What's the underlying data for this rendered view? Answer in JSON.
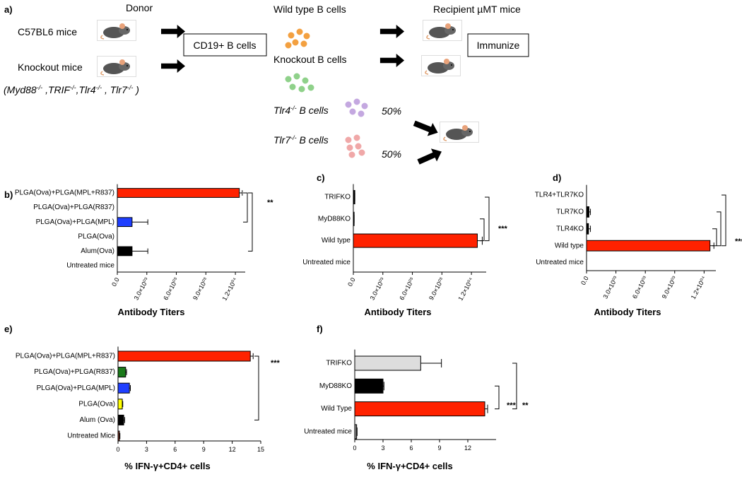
{
  "diagram": {
    "label": "a)",
    "donor_header": "Donor",
    "donor_wild": "C57BL6 mice",
    "donor_knockout": "Knockout mice",
    "knockout_genes": [
      "(Myd88",
      "-/-",
      " ,TRIF",
      "-/-",
      ",Tlr4",
      "-/-",
      " , Tlr7",
      "-/-",
      " )"
    ],
    "sorted": "CD19+ B cells",
    "wild_cells": "Wild type B cells",
    "knockout_cells": "Knockout B cells",
    "tlr4_cells": [
      "Tlr4",
      "-/-",
      " B cells"
    ],
    "tlr7_cells": [
      "Tlr7",
      "-/-",
      " B cells"
    ],
    "tlr4_share": "50%",
    "tlr7_share": "50%",
    "recipient_header": "Recipient µMT mice",
    "immunize": "Immunize"
  },
  "chart_data": [
    {
      "type": "barh",
      "panel": "b)",
      "categories": [
        "PLGA(Ova)+PLGA(MPL+R837)",
        "PLGA(Ova)+PLGA(R837)",
        "PLGA(Ova)+PLGA(MPL)",
        "PLGA(Ova)",
        "Alum(Ova)",
        "Untreated mice"
      ],
      "values": [
        12400,
        0,
        1500,
        0,
        1500,
        0
      ],
      "errors": [
        300,
        0,
        1600,
        0,
        1600,
        0
      ],
      "colors": [
        "#ff2200",
        "#ff2200",
        "#1f3fff",
        "#000000",
        "#000000",
        "#000000"
      ],
      "xlim": [
        0,
        13000
      ],
      "xticks": [
        {
          "value": 0,
          "label": "0.0"
        },
        {
          "value": 3000,
          "label": "3.0×10⁰³"
        },
        {
          "value": 6000,
          "label": "6.0×10⁰³"
        },
        {
          "value": 9000,
          "label": "9.0×10⁰³"
        },
        {
          "value": 12000,
          "label": "1.2×10⁰⁴"
        }
      ],
      "xlabel": "Antibody Titers",
      "annotations": [
        "**"
      ]
    },
    {
      "type": "barh",
      "panel": "c)",
      "categories": [
        "TRIFKO",
        "MyD88KO",
        "Wild type",
        "Untreated mice"
      ],
      "values": [
        150,
        80,
        12600,
        0
      ],
      "errors": [
        0,
        0,
        500,
        0
      ],
      "colors": [
        "#000000",
        "#000000",
        "#ff2200",
        "#000000"
      ],
      "xlim": [
        0,
        13500
      ],
      "xticks": [
        {
          "value": 0,
          "label": "0.0"
        },
        {
          "value": 3000,
          "label": "3.0×10⁰³"
        },
        {
          "value": 6000,
          "label": "6.0×10⁰³"
        },
        {
          "value": 9000,
          "label": "9.0×10⁰³"
        },
        {
          "value": 12000,
          "label": "1.2×10⁰⁴"
        }
      ],
      "xlabel": "Antibody Titers",
      "annotations": [
        "***"
      ]
    },
    {
      "type": "barh",
      "panel": "d)",
      "categories": [
        "TLR4+TLR7KO",
        "TLR7KO",
        "TLR4KO",
        "Wild type",
        "Untreated mice"
      ],
      "values": [
        0,
        250,
        200,
        12600,
        0
      ],
      "errors": [
        0,
        150,
        200,
        400,
        0
      ],
      "colors": [
        "#000000",
        "#000000",
        "#000000",
        "#ff2200",
        "#000000"
      ],
      "xlim": [
        0,
        13200
      ],
      "xticks": [
        {
          "value": 0,
          "label": "0.0"
        },
        {
          "value": 3000,
          "label": "3.0×10⁰³"
        },
        {
          "value": 6000,
          "label": "6.0×10⁰³"
        },
        {
          "value": 9000,
          "label": "9.0×10⁰³"
        },
        {
          "value": 12000,
          "label": "1.2×10⁰⁴"
        }
      ],
      "xlabel": "Antibody Titers",
      "annotations": [
        "***"
      ]
    },
    {
      "type": "barh",
      "panel": "e)",
      "categories": [
        "PLGA(Ova)+PLGA(MPL+R837)",
        "PLGA(Ova)+PLGA(R837)",
        "PLGA(Ova)+PLGA(MPL)",
        "PLGA(Ova)",
        "Alum (Ova)",
        "Untreated Mice"
      ],
      "values": [
        13.9,
        0.8,
        1.2,
        0.45,
        0.6,
        0.15
      ],
      "errors": [
        0.3,
        0.1,
        0.1,
        0.05,
        0.1,
        0.05
      ],
      "colors": [
        "#ff2200",
        "#1a7a1a",
        "#1f3fff",
        "#ffff00",
        "#000000",
        "#8b3a2a"
      ],
      "xlim": [
        0,
        15
      ],
      "xticks": [
        0,
        3,
        6,
        9,
        12,
        15
      ],
      "xlabel": "% IFN-γ+CD4+ cells",
      "annotations": [
        "***"
      ]
    },
    {
      "type": "barh",
      "panel": "f)",
      "categories": [
        "TRIFKO",
        "MyD88KO",
        "Wild Type",
        "Untreated mice"
      ],
      "values": [
        7.0,
        3.0,
        13.8,
        0.2
      ],
      "errors": [
        2.2,
        0.1,
        0.3,
        0.05
      ],
      "colors": [
        "#dddddd",
        "#000000",
        "#ff2200",
        "#888888"
      ],
      "xlim": [
        0,
        15
      ],
      "xticks": [
        0,
        3,
        6,
        9,
        12
      ],
      "xlabel": "% IFN-γ+CD4+ cells",
      "annotations": [
        "***",
        "**"
      ]
    }
  ]
}
